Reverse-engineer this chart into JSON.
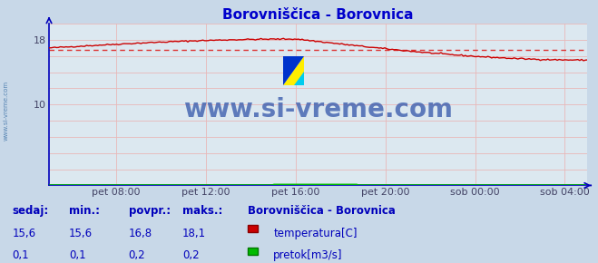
{
  "title": "Borovniščica - Borovnica",
  "title_color": "#0000cc",
  "bg_color": "#c8d8e8",
  "plot_bg_color": "#dce8f0",
  "grid_color": "#e8b8b8",
  "axis_color": "#0000bb",
  "watermark_text": "www.si-vreme.com",
  "watermark_color": "#3355aa",
  "sidebar_text": "www.si-vreme.com",
  "sidebar_color": "#4477aa",
  "x_ticks_labels": [
    "pet 08:00",
    "pet 12:00",
    "pet 16:00",
    "pet 20:00",
    "sob 00:00",
    "sob 04:00"
  ],
  "x_ticks_positions": [
    0.125,
    0.292,
    0.458,
    0.625,
    0.792,
    0.958
  ],
  "y_ticks_labeled": [
    10,
    18
  ],
  "ylim": [
    0,
    20
  ],
  "xlim": [
    0,
    1
  ],
  "temp_color": "#cc0000",
  "flow_color": "#00bb00",
  "avg_color": "#dd3333",
  "avg_value": 16.8,
  "temp_min": 15.6,
  "temp_max": 18.1,
  "flow_min": 0.1,
  "flow_max": 0.2,
  "flow_avg": 0.2,
  "flow_current": 0.1,
  "temp_current": 15.6,
  "footer_label_color": "#0000bb",
  "footer_value_color": "#0000bb",
  "legend_title": "Borovniščica - Borovnica",
  "legend_title_color": "#0000bb",
  "legend_text_color": "#0000bb"
}
